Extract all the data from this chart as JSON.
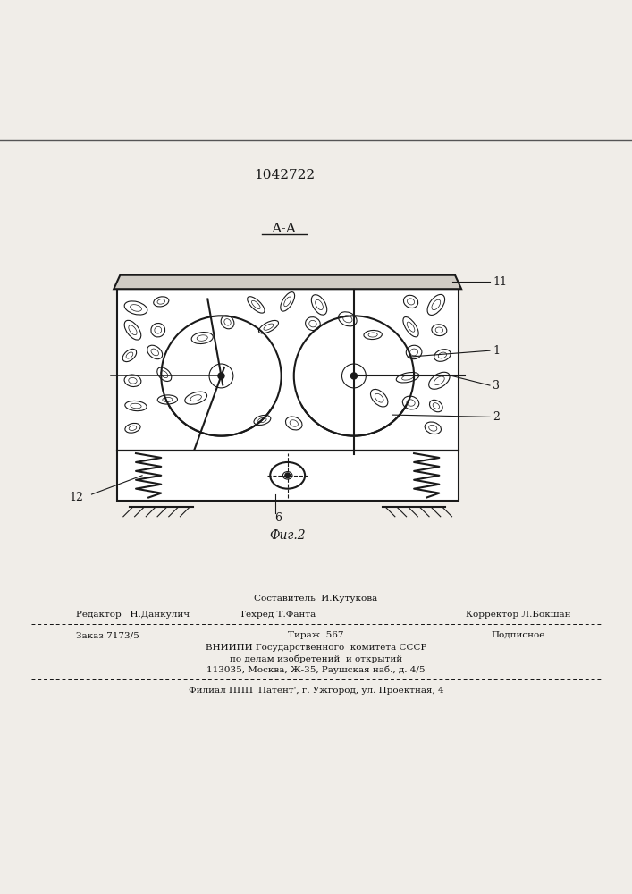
{
  "patent_number": "1042722",
  "section_label": "А-А",
  "fig_label": "Фиг.2",
  "bg_color": "#f0ede8",
  "line_color": "#1a1a1a",
  "footer": {
    "line1_center": "Составитель  И.Кутукова",
    "line2_left": "Редактор   Н.Данкулич",
    "line2_center": "Техред Т.Фанта",
    "line2_right": "Корректор Л.Бокшан",
    "line3_left": "Заказ 7173/5",
    "line3_center": "Тираж  567",
    "line3_right": "Подписное",
    "line4": "ВНИИПИ Государственного  комитета СССР",
    "line5": "по делам изобретений  и открытий",
    "line6": "113035, Москва, Ж-35, Раушская наб., д. 4/5",
    "line7": "Филиал ППП 'Патент', г. Ужгород, ул. Проектная, 4"
  }
}
